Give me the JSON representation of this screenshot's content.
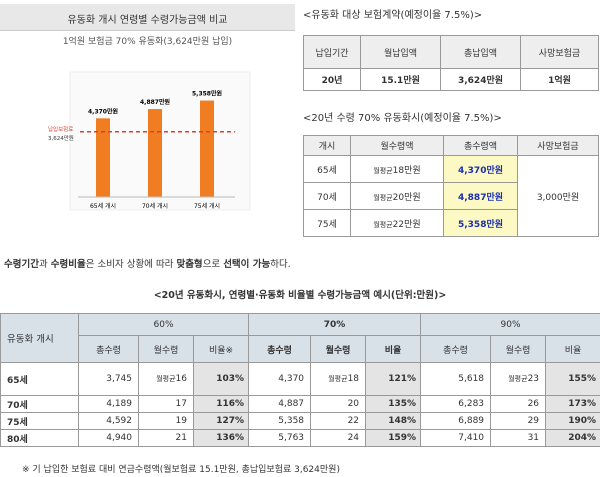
{
  "left_panel": {
    "title": "유동화 개시 연령별 수령가능금액 비교",
    "subtitle": "1억원 보험금 70% 유동화(3,624만원 납입)",
    "chart": {
      "type": "bar",
      "categories": [
        "65세 개시",
        "70세 개시",
        "75세 개시"
      ],
      "values": [
        4370,
        4887,
        5358
      ],
      "value_labels": [
        "4,370만원",
        "4,887만원",
        "5,358만원"
      ],
      "color": "#f07d22",
      "ylim": [
        0,
        6500
      ],
      "reference_line": {
        "value": 3624,
        "label": "납입보험료",
        "value_label": "3,624만원",
        "color": "#e03c31"
      }
    }
  },
  "contract": {
    "title": "<유동화 대상 보험계약(예정이율 7.5%)>",
    "headers": [
      "납입기간",
      "월납입액",
      "총납입액",
      "사망보험금"
    ],
    "row": [
      "20년",
      "15.1만원",
      "3,624만원",
      "1억원"
    ]
  },
  "payout": {
    "title": "<20년 수령 70% 유동화시(예정이율 7.5%)>",
    "headers": [
      "개시",
      "월수령액",
      "총수령액",
      "사망보험금"
    ],
    "rows": [
      {
        "age": "65세",
        "monthly_prefix": "월평균",
        "monthly": "18만원",
        "total": "4,370만원"
      },
      {
        "age": "70세",
        "monthly_prefix": "월평균",
        "monthly": "20만원",
        "total": "4,887만원"
      },
      {
        "age": "75세",
        "monthly_prefix": "월평균",
        "monthly": "22만원",
        "total": "5,358만원"
      }
    ],
    "death_benefit": "3,000만원"
  },
  "note": [
    "수령기간",
    "과 ",
    "수령비율",
    "은 소비자 상황에 따라 ",
    "맞춤형",
    "으로 ",
    "선택이 가능",
    "하다."
  ],
  "matrix": {
    "title": "<20년 유동화시, 연령별·유동화 비율별 수령가능금액 예시(단위:만원)>",
    "row_header": "유동화 개시",
    "groups": [
      "60%",
      "70%",
      "90%"
    ],
    "subheaders": [
      [
        "총수령",
        "월수령",
        "비율※"
      ],
      [
        "총수령",
        "월수령",
        "비율"
      ],
      [
        "총수령",
        "월수령",
        "비율"
      ]
    ],
    "monthly_prefix": "월평균",
    "rows": [
      {
        "age": "65세",
        "cells": [
          "3,745",
          "16",
          "103%",
          "4,370",
          "18",
          "121%",
          "5,618",
          "23",
          "155%"
        ]
      },
      {
        "age": "70세",
        "cells": [
          "4,189",
          "17",
          "116%",
          "4,887",
          "20",
          "135%",
          "6,283",
          "26",
          "173%"
        ]
      },
      {
        "age": "75세",
        "cells": [
          "4,592",
          "19",
          "127%",
          "5,358",
          "22",
          "148%",
          "6,889",
          "29",
          "190%"
        ]
      },
      {
        "age": "80세",
        "cells": [
          "4,940",
          "21",
          "136%",
          "5,763",
          "24",
          "159%",
          "7,410",
          "31",
          "204%"
        ]
      }
    ]
  },
  "footnote": "※ 기 납입한 보험료 대비 연금수령액(월보험료 15.1만원, 총납입보험료 3,624만원)"
}
